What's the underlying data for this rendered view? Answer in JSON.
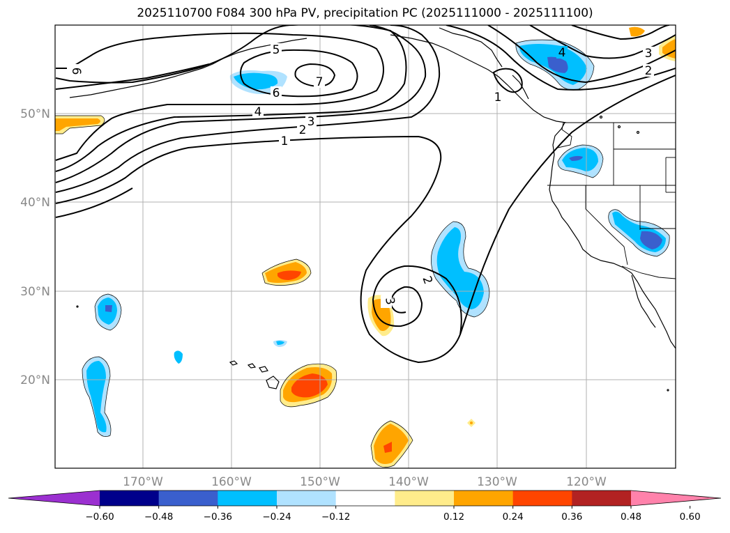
{
  "title": "2025110700 F084 300 hPa PV, precipitation PC (2025111000 - 2025111100)",
  "map": {
    "lat_labels": [
      "50°N",
      "40°N",
      "30°N",
      "20°N"
    ],
    "lon_labels": [
      "170°W",
      "160°W",
      "150°W",
      "140°W",
      "130°W",
      "120°W"
    ],
    "pv_contour_labels": [
      "1",
      "2",
      "3",
      "4",
      "5",
      "6",
      "7",
      "6",
      "1",
      "2",
      "3",
      "4",
      "2",
      "3"
    ]
  },
  "colorbar": {
    "colors": [
      "#9b30d0",
      "#00008b",
      "#3a5fcd",
      "#00bfff",
      "#b0e2ff",
      "#ffffff",
      "#ffec8b",
      "#ffa500",
      "#ff4500",
      "#b22222",
      "#ff82ab"
    ],
    "tick_labels": [
      "−0.60",
      "−0.48",
      "−0.36",
      "−0.24",
      "−0.12",
      "0.12",
      "0.24",
      "0.36",
      "0.48",
      "0.60"
    ]
  }
}
